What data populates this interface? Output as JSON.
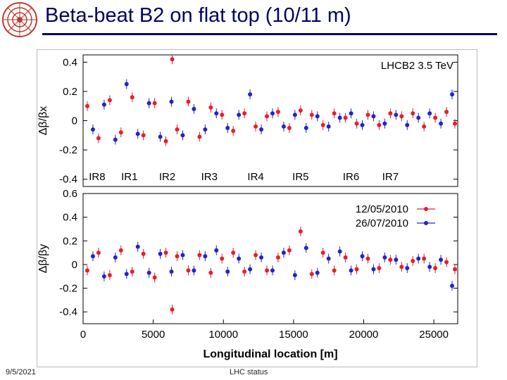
{
  "slide": {
    "title": "Beta-beat B2 on flat top (10/11 m)",
    "date": "9/5/2021",
    "footer": "LHC status"
  },
  "colors": {
    "title": "#000066",
    "series_red": "#e4202a",
    "series_blue": "#2323c8"
  },
  "chart_data": [
    {
      "type": "scatter",
      "title": "",
      "annotation": "LHCB2 3.5 TeV",
      "ylabel": "Δβ/βx",
      "xlim": [
        0,
        26700
      ],
      "ylim": [
        -0.45,
        0.45
      ],
      "yticks": [
        -0.4,
        -0.2,
        0,
        0.2,
        0.4
      ],
      "ir_labels": [
        {
          "name": "IR8",
          "x": 1000
        },
        {
          "name": "IR1",
          "x": 3300
        },
        {
          "name": "IR2",
          "x": 6000
        },
        {
          "name": "IR3",
          "x": 9000
        },
        {
          "name": "IR4",
          "x": 12300
        },
        {
          "name": "IR5",
          "x": 15500
        },
        {
          "name": "IR6",
          "x": 19100
        },
        {
          "name": "IR7",
          "x": 21900
        }
      ],
      "series": [
        {
          "name": "12/05/2010",
          "color": "#e4202a",
          "x": [
            300,
            1100,
            1900,
            2700,
            3500,
            4300,
            5100,
            5900,
            6350,
            6700,
            7500,
            8300,
            9100,
            9900,
            10700,
            11500,
            12300,
            13100,
            13900,
            14700,
            15500,
            16300,
            17100,
            17900,
            18700,
            19500,
            20300,
            21100,
            21900,
            22700,
            23500,
            24300,
            25100,
            25900,
            26500
          ],
          "y": [
            0.1,
            -0.12,
            0.14,
            -0.08,
            0.16,
            -0.1,
            0.12,
            -0.14,
            0.42,
            -0.06,
            0.13,
            -0.11,
            0.09,
            0.04,
            -0.07,
            0.05,
            -0.04,
            0.03,
            0.06,
            -0.05,
            0.07,
            0.04,
            -0.03,
            0.05,
            0.02,
            -0.02,
            0.04,
            -0.03,
            0.05,
            0.03,
            0.05,
            -0.04,
            0.02,
            0.06,
            -0.02
          ]
        },
        {
          "name": "26/07/2010",
          "color": "#2323c8",
          "x": [
            700,
            1500,
            2300,
            3100,
            3900,
            4700,
            5500,
            6300,
            7100,
            7900,
            8700,
            9500,
            10300,
            11100,
            11900,
            12700,
            13500,
            14300,
            15100,
            15900,
            16700,
            17500,
            18300,
            19100,
            19900,
            20700,
            21500,
            22300,
            23100,
            23900,
            24700,
            25500,
            26300
          ],
          "y": [
            -0.06,
            0.11,
            -0.13,
            0.25,
            -0.09,
            0.12,
            -0.11,
            0.13,
            -0.1,
            0.08,
            -0.06,
            0.05,
            -0.05,
            0.04,
            0.18,
            -0.06,
            0.05,
            -0.04,
            0.04,
            -0.05,
            0.03,
            -0.04,
            0.02,
            0.05,
            -0.03,
            0.03,
            -0.02,
            0.04,
            -0.03,
            0.02,
            0.05,
            -0.02,
            0.18
          ]
        }
      ]
    },
    {
      "type": "scatter",
      "title": "",
      "ylabel": "Δβ/βy",
      "xlabel": "Longitudinal location [m]",
      "xlim": [
        0,
        26700
      ],
      "ylim": [
        -0.5,
        0.6
      ],
      "yticks": [
        -0.4,
        -0.2,
        0,
        0.2,
        0.4,
        0.6
      ],
      "xticks": [
        0,
        5000,
        10000,
        15000,
        20000,
        25000
      ],
      "legend_position": "top-right",
      "series": [
        {
          "name": "12/05/2010",
          "color": "#e4202a",
          "x": [
            300,
            1100,
            1900,
            2700,
            3500,
            4300,
            5100,
            5900,
            6350,
            6700,
            7500,
            8300,
            9100,
            9900,
            10700,
            11500,
            12300,
            13100,
            13900,
            14700,
            15500,
            16300,
            17100,
            17900,
            18700,
            19500,
            20300,
            21100,
            21900,
            22700,
            23500,
            24300,
            25100,
            25900,
            26500
          ],
          "y": [
            -0.05,
            0.1,
            -0.09,
            0.12,
            -0.06,
            0.09,
            -0.11,
            0.1,
            -0.38,
            0.07,
            -0.05,
            0.08,
            -0.07,
            0.05,
            0.1,
            -0.06,
            0.08,
            -0.05,
            0.06,
            0.12,
            0.28,
            -0.08,
            0.1,
            -0.05,
            0.06,
            -0.04,
            0.05,
            -0.03,
            0.04,
            -0.02,
            0.03,
            0.05,
            -0.03,
            0.02,
            -0.04
          ]
        },
        {
          "name": "26/07/2010",
          "color": "#2323c8",
          "x": [
            700,
            1500,
            2300,
            3100,
            3900,
            4700,
            5500,
            6300,
            7100,
            7900,
            8700,
            9500,
            10300,
            11100,
            11900,
            12700,
            13500,
            14300,
            15100,
            15900,
            16700,
            17500,
            18300,
            19100,
            19900,
            20700,
            21500,
            22300,
            23100,
            23900,
            24700,
            25500,
            26300
          ],
          "y": [
            0.07,
            -0.1,
            0.06,
            -0.08,
            0.15,
            -0.07,
            0.09,
            -0.06,
            0.08,
            -0.05,
            0.07,
            0.12,
            -0.06,
            0.05,
            -0.04,
            0.06,
            -0.05,
            0.1,
            -0.09,
            0.14,
            -0.07,
            0.05,
            0.11,
            -0.05,
            0.07,
            -0.04,
            0.06,
            0.04,
            -0.03,
            0.05,
            -0.02,
            0.04,
            -0.18
          ]
        }
      ]
    }
  ]
}
